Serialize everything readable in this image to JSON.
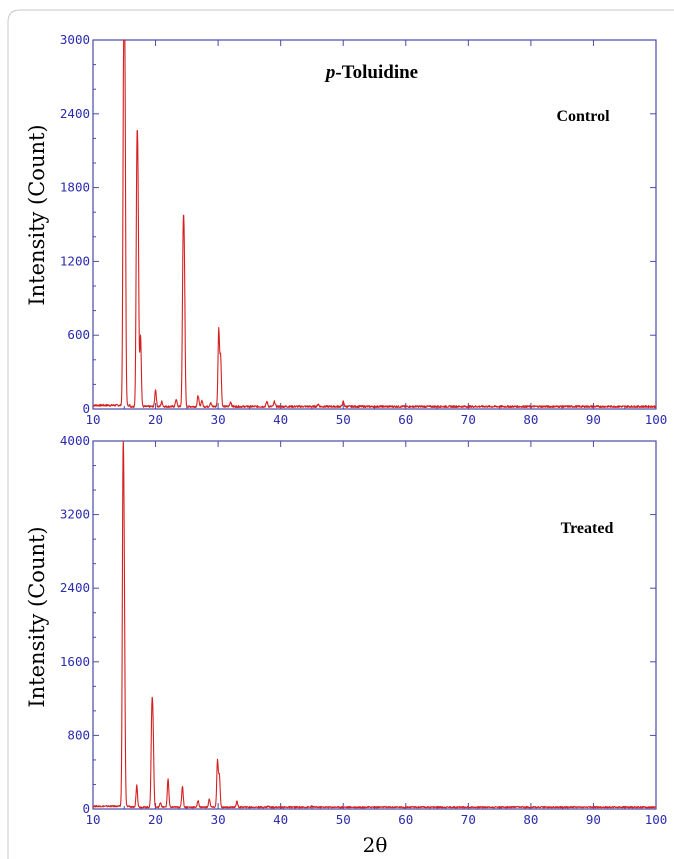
{
  "colors": {
    "trace": "#d42020",
    "axis": "#4a4aa8",
    "tick_text": "#2b2bb0"
  },
  "chart_data": [
    {
      "type": "line",
      "title": "",
      "title_italic_part": "p",
      "title_rest": "-Toluidine",
      "annotation": "Control",
      "xlabel": "",
      "ylabel": "Intensity (Count)",
      "xlim": [
        10,
        100
      ],
      "ylim": [
        0,
        3000
      ],
      "xticks": [
        10,
        20,
        30,
        40,
        50,
        60,
        70,
        80,
        90,
        100
      ],
      "yticks": [
        0,
        600,
        1200,
        1800,
        2400,
        3000
      ],
      "baseline": 20,
      "grid": false,
      "peaks": [
        {
          "x": 14.9,
          "y": 2620
        },
        {
          "x": 15.1,
          "y": 2400
        },
        {
          "x": 17.0,
          "y": 1720
        },
        {
          "x": 17.2,
          "y": 1500
        },
        {
          "x": 17.6,
          "y": 600
        },
        {
          "x": 20.0,
          "y": 160
        },
        {
          "x": 21.0,
          "y": 60
        },
        {
          "x": 23.3,
          "y": 80
        },
        {
          "x": 24.4,
          "y": 1200
        },
        {
          "x": 24.6,
          "y": 1050
        },
        {
          "x": 26.8,
          "y": 110
        },
        {
          "x": 27.4,
          "y": 70
        },
        {
          "x": 28.8,
          "y": 50
        },
        {
          "x": 30.1,
          "y": 640
        },
        {
          "x": 30.4,
          "y": 420
        },
        {
          "x": 32.0,
          "y": 60
        },
        {
          "x": 37.8,
          "y": 60
        },
        {
          "x": 39.0,
          "y": 60
        },
        {
          "x": 46.0,
          "y": 40
        },
        {
          "x": 50.0,
          "y": 60
        }
      ]
    },
    {
      "type": "line",
      "title": "",
      "annotation": "Treated",
      "xlabel": "2θ",
      "ylabel": "Intensity (Count)",
      "xlim": [
        10,
        100
      ],
      "ylim": [
        0,
        4000
      ],
      "xticks": [
        10,
        20,
        30,
        40,
        50,
        60,
        70,
        80,
        90,
        100
      ],
      "yticks": [
        0,
        800,
        1600,
        2400,
        3200,
        4000
      ],
      "baseline": 20,
      "grid": false,
      "peaks": [
        {
          "x": 14.8,
          "y": 3420
        },
        {
          "x": 15.0,
          "y": 2000
        },
        {
          "x": 17.0,
          "y": 260
        },
        {
          "x": 19.4,
          "y": 940
        },
        {
          "x": 19.6,
          "y": 780
        },
        {
          "x": 20.8,
          "y": 70
        },
        {
          "x": 22.0,
          "y": 330
        },
        {
          "x": 24.3,
          "y": 250
        },
        {
          "x": 26.8,
          "y": 90
        },
        {
          "x": 28.6,
          "y": 110
        },
        {
          "x": 29.9,
          "y": 520
        },
        {
          "x": 30.2,
          "y": 360
        },
        {
          "x": 33.0,
          "y": 80
        },
        {
          "x": 38.0,
          "y": 30
        },
        {
          "x": 45.0,
          "y": 30
        }
      ]
    }
  ]
}
